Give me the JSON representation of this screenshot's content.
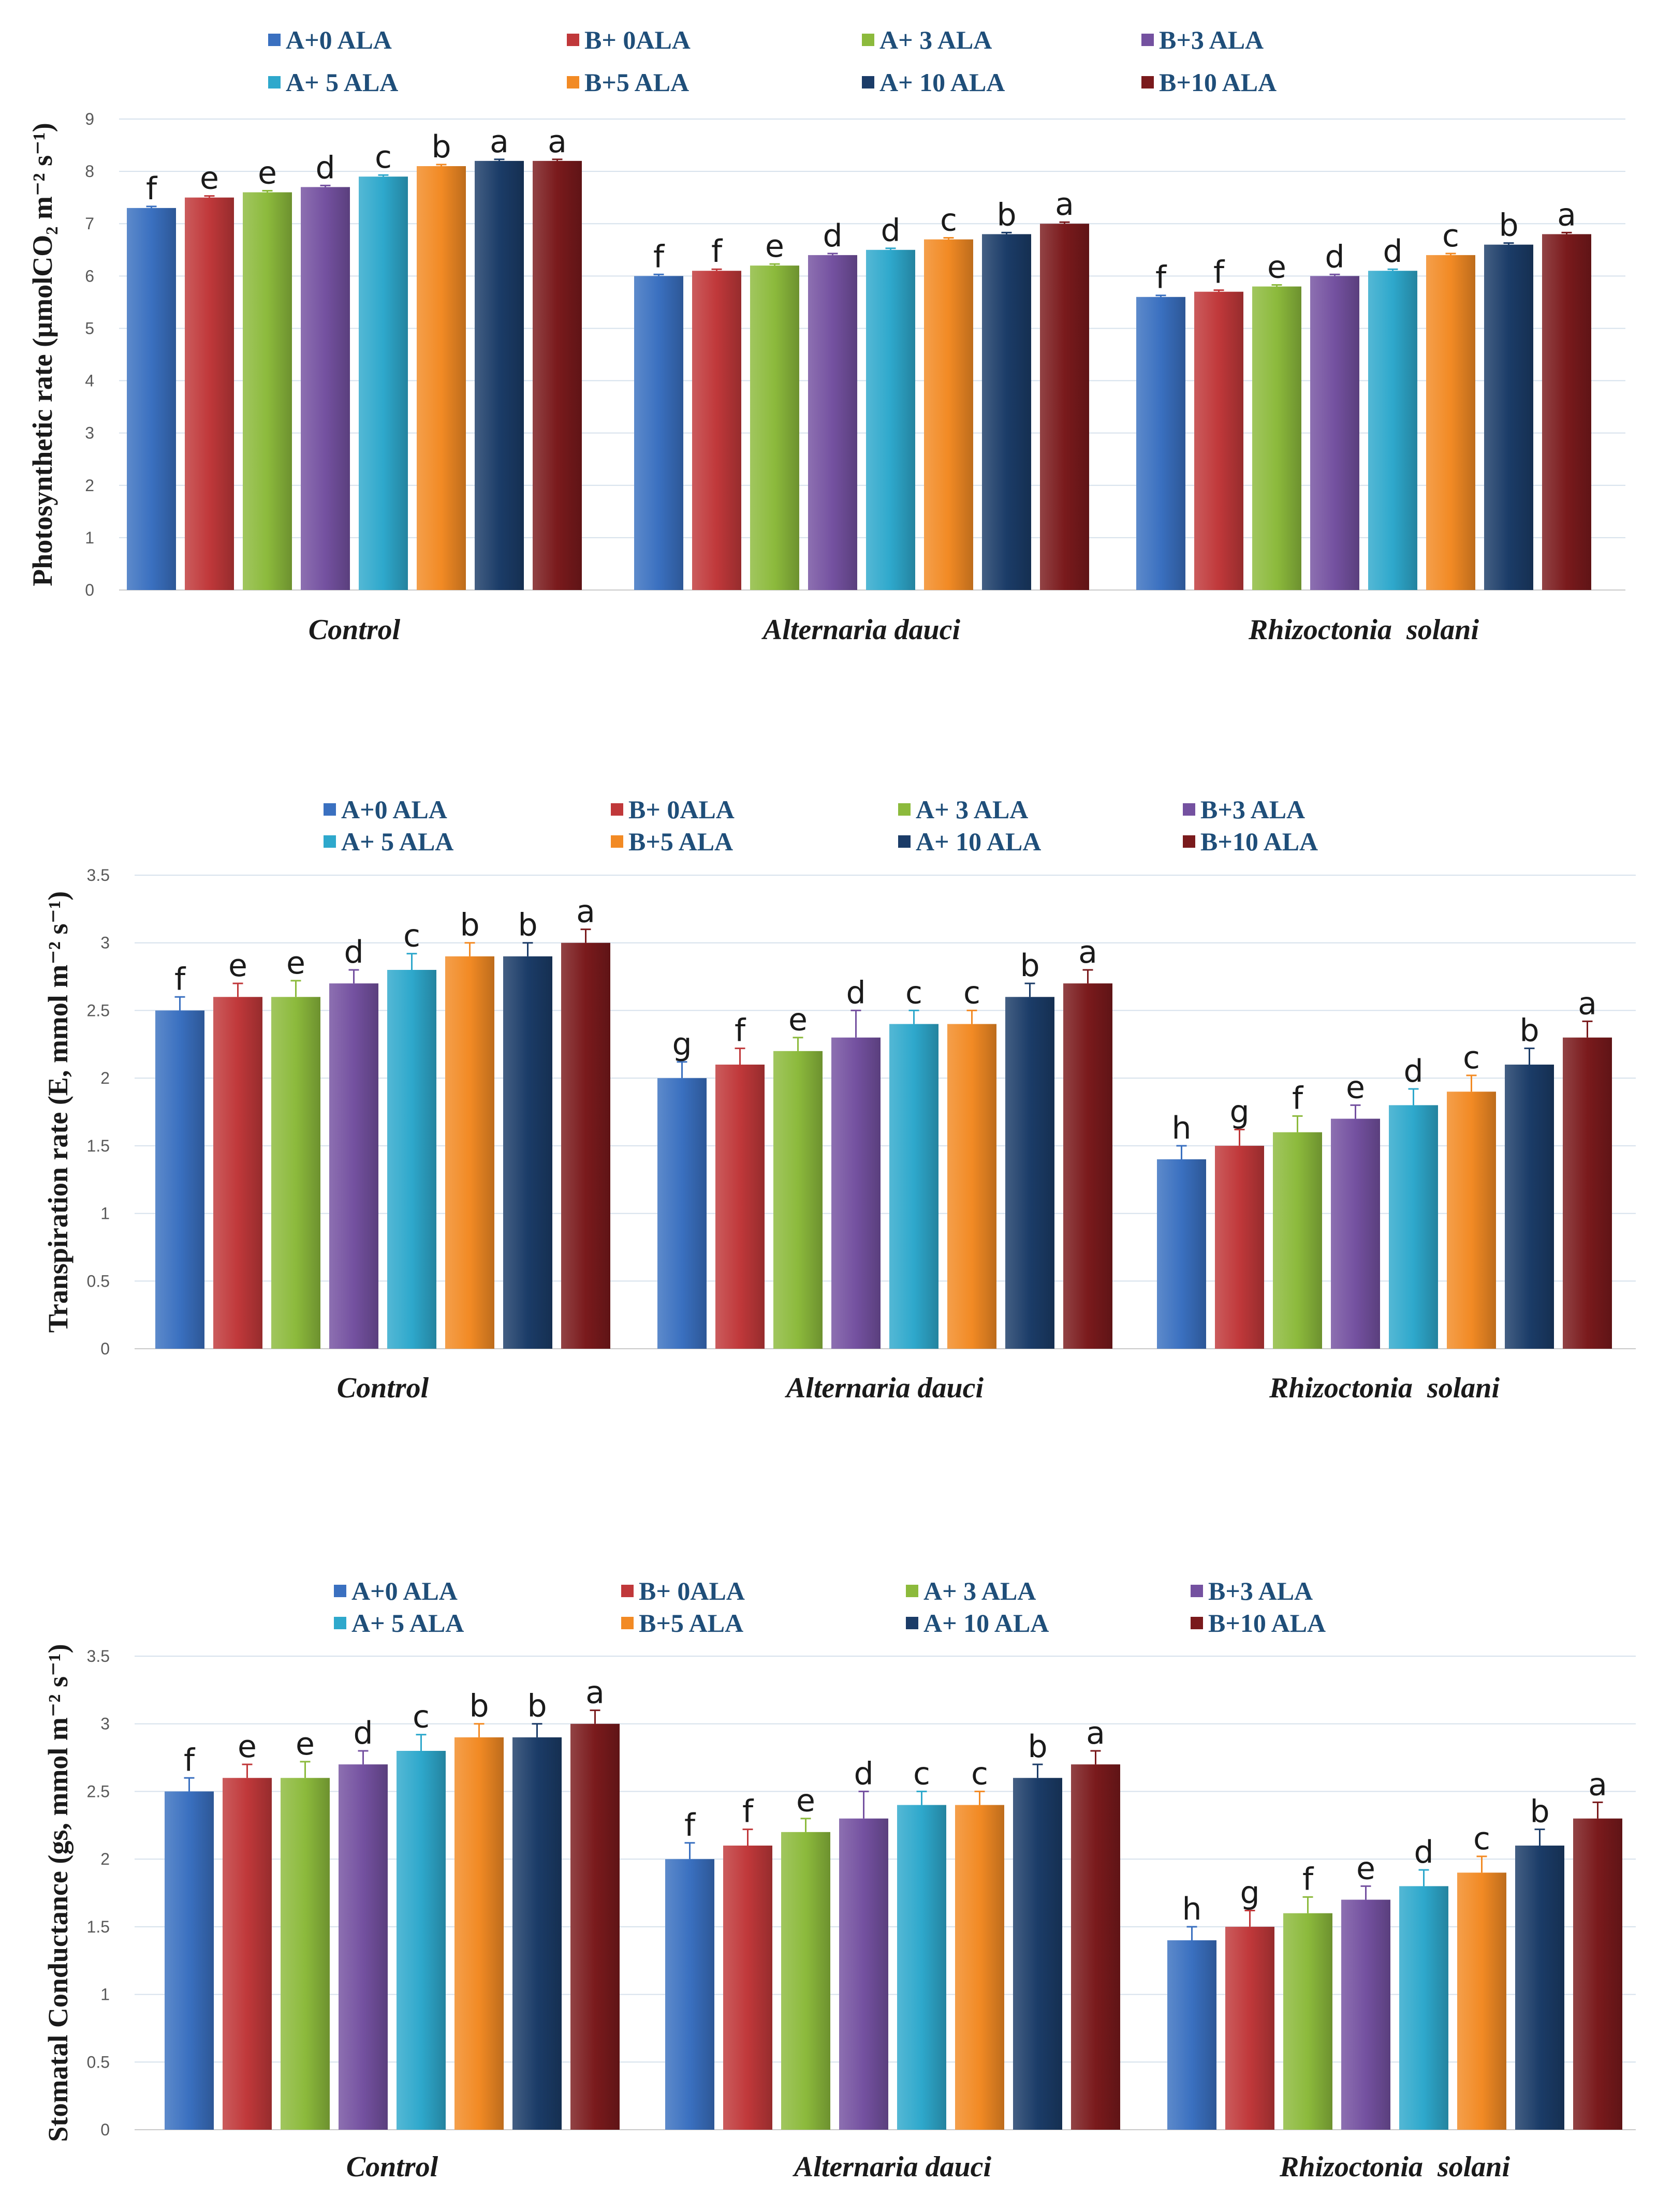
{
  "series_names": [
    "A+0 ALA",
    "B+ 0ALA",
    "A+ 3 ALA",
    "B+3 ALA",
    "A+ 5 ALA",
    "B+5 ALA",
    "A+ 10 ALA",
    "B+10 ALA"
  ],
  "series_colors": [
    "#3a70c0",
    "#c0383a",
    "#8cba3c",
    "#7451a0",
    "#2ea8cc",
    "#f28a24",
    "#1b3c68",
    "#7a1a1c"
  ],
  "chart_data": [
    {
      "type": "bar",
      "title": "",
      "ylabel": "Photosynthetic rate (µmolCO₂ m⁻² s⁻¹)",
      "xlabel": "",
      "categories": [
        "Control",
        "Alternaria dauci",
        "Rhizoctonia  solani"
      ],
      "ylim": [
        0,
        9
      ],
      "yticks": [
        "0",
        "1",
        "2",
        "3",
        "4",
        "5",
        "6",
        "7",
        "8",
        "9"
      ],
      "series": [
        {
          "name": "A+0 ALA",
          "values": [
            7.3,
            6.0,
            5.6
          ],
          "errors": [
            0.03,
            0.03,
            0.03
          ],
          "letters": [
            "f",
            "f",
            "f"
          ]
        },
        {
          "name": "B+ 0ALA",
          "values": [
            7.5,
            6.1,
            5.7
          ],
          "errors": [
            0.03,
            0.03,
            0.03
          ],
          "letters": [
            "e",
            "f",
            "f"
          ]
        },
        {
          "name": "A+ 3 ALA",
          "values": [
            7.6,
            6.2,
            5.8
          ],
          "errors": [
            0.03,
            0.03,
            0.03
          ],
          "letters": [
            "e",
            "e",
            "e"
          ]
        },
        {
          "name": "B+3 ALA",
          "values": [
            7.7,
            6.4,
            6.0
          ],
          "errors": [
            0.03,
            0.03,
            0.03
          ],
          "letters": [
            "d",
            "d",
            "d"
          ]
        },
        {
          "name": "A+ 5 ALA",
          "values": [
            7.9,
            6.5,
            6.1
          ],
          "errors": [
            0.03,
            0.03,
            0.03
          ],
          "letters": [
            "c",
            "d",
            "d"
          ]
        },
        {
          "name": "B+5 ALA",
          "values": [
            8.1,
            6.7,
            6.4
          ],
          "errors": [
            0.03,
            0.03,
            0.03
          ],
          "letters": [
            "b",
            "c",
            "c"
          ]
        },
        {
          "name": "A+ 10 ALA",
          "values": [
            8.2,
            6.8,
            6.6
          ],
          "errors": [
            0.03,
            0.03,
            0.03
          ],
          "letters": [
            "a",
            "b",
            "b"
          ]
        },
        {
          "name": "B+10 ALA",
          "values": [
            8.2,
            7.0,
            6.8
          ],
          "errors": [
            0.03,
            0.03,
            0.03
          ],
          "letters": [
            "a",
            "a",
            "a"
          ]
        }
      ]
    },
    {
      "type": "bar",
      "title": "",
      "ylabel": "Transpiration rate (E, mmol m⁻² s⁻¹)",
      "xlabel": "",
      "categories": [
        "Control",
        "Alternaria dauci",
        "Rhizoctonia  solani"
      ],
      "ylim": [
        0,
        3.5
      ],
      "yticks": [
        "0",
        "0.5",
        "1",
        "1.5",
        "2",
        "2.5",
        "3",
        "3.5"
      ],
      "series": [
        {
          "name": "A+0 ALA",
          "values": [
            2.5,
            2.0,
            1.4
          ],
          "errors": [
            0.1,
            0.12,
            0.1
          ],
          "letters": [
            "f",
            "g",
            "h"
          ]
        },
        {
          "name": "B+ 0ALA",
          "values": [
            2.6,
            2.1,
            1.5
          ],
          "errors": [
            0.1,
            0.12,
            0.12
          ],
          "letters": [
            "e",
            "f",
            "g"
          ]
        },
        {
          "name": "A+ 3 ALA",
          "values": [
            2.6,
            2.2,
            1.6
          ],
          "errors": [
            0.12,
            0.1,
            0.12
          ],
          "letters": [
            "e",
            "e",
            "f"
          ]
        },
        {
          "name": "B+3 ALA",
          "values": [
            2.7,
            2.3,
            1.7
          ],
          "errors": [
            0.1,
            0.2,
            0.1
          ],
          "letters": [
            "d",
            "d",
            "e"
          ]
        },
        {
          "name": "A+ 5 ALA",
          "values": [
            2.8,
            2.4,
            1.8
          ],
          "errors": [
            0.12,
            0.1,
            0.12
          ],
          "letters": [
            "c",
            "c",
            "d"
          ]
        },
        {
          "name": "B+5 ALA",
          "values": [
            2.9,
            2.4,
            1.9
          ],
          "errors": [
            0.1,
            0.1,
            0.12
          ],
          "letters": [
            "b",
            "c",
            "c"
          ]
        },
        {
          "name": "A+ 10 ALA",
          "values": [
            2.9,
            2.6,
            2.1
          ],
          "errors": [
            0.1,
            0.1,
            0.12
          ],
          "letters": [
            "b",
            "b",
            "b"
          ]
        },
        {
          "name": "B+10 ALA",
          "values": [
            3.0,
            2.7,
            2.3
          ],
          "errors": [
            0.1,
            0.1,
            0.12
          ],
          "letters": [
            "a",
            "a",
            "a"
          ]
        }
      ]
    },
    {
      "type": "bar",
      "title": "",
      "ylabel": "Stomatal Conductance (gs, mmol m⁻² s⁻¹)",
      "xlabel": "",
      "categories": [
        "Control",
        "Alternaria dauci",
        "Rhizoctonia  solani"
      ],
      "ylim": [
        0,
        3.5
      ],
      "yticks": [
        "0",
        "0.5",
        "1",
        "1.5",
        "2",
        "2.5",
        "3",
        "3.5"
      ],
      "series": [
        {
          "name": "A+0 ALA",
          "values": [
            2.5,
            2.0,
            1.4
          ],
          "errors": [
            0.1,
            0.12,
            0.1
          ],
          "letters": [
            "f",
            "f",
            "h"
          ]
        },
        {
          "name": "B+ 0ALA",
          "values": [
            2.6,
            2.1,
            1.5
          ],
          "errors": [
            0.1,
            0.12,
            0.12
          ],
          "letters": [
            "e",
            "f",
            "g"
          ]
        },
        {
          "name": "A+ 3 ALA",
          "values": [
            2.6,
            2.2,
            1.6
          ],
          "errors": [
            0.12,
            0.1,
            0.12
          ],
          "letters": [
            "e",
            "e",
            "f"
          ]
        },
        {
          "name": "B+3 ALA",
          "values": [
            2.7,
            2.3,
            1.7
          ],
          "errors": [
            0.1,
            0.2,
            0.1
          ],
          "letters": [
            "d",
            "d",
            "e"
          ]
        },
        {
          "name": "A+ 5 ALA",
          "values": [
            2.8,
            2.4,
            1.8
          ],
          "errors": [
            0.12,
            0.1,
            0.12
          ],
          "letters": [
            "c",
            "c",
            "d"
          ]
        },
        {
          "name": "B+5 ALA",
          "values": [
            2.9,
            2.4,
            1.9
          ],
          "errors": [
            0.1,
            0.1,
            0.12
          ],
          "letters": [
            "b",
            "c",
            "c"
          ]
        },
        {
          "name": "A+ 10 ALA",
          "values": [
            2.9,
            2.6,
            2.1
          ],
          "errors": [
            0.1,
            0.1,
            0.12
          ],
          "letters": [
            "b",
            "b",
            "b"
          ]
        },
        {
          "name": "B+10 ALA",
          "values": [
            3.0,
            2.7,
            2.3
          ],
          "errors": [
            0.1,
            0.1,
            0.12
          ],
          "letters": [
            "a",
            "a",
            "a"
          ]
        }
      ]
    }
  ]
}
